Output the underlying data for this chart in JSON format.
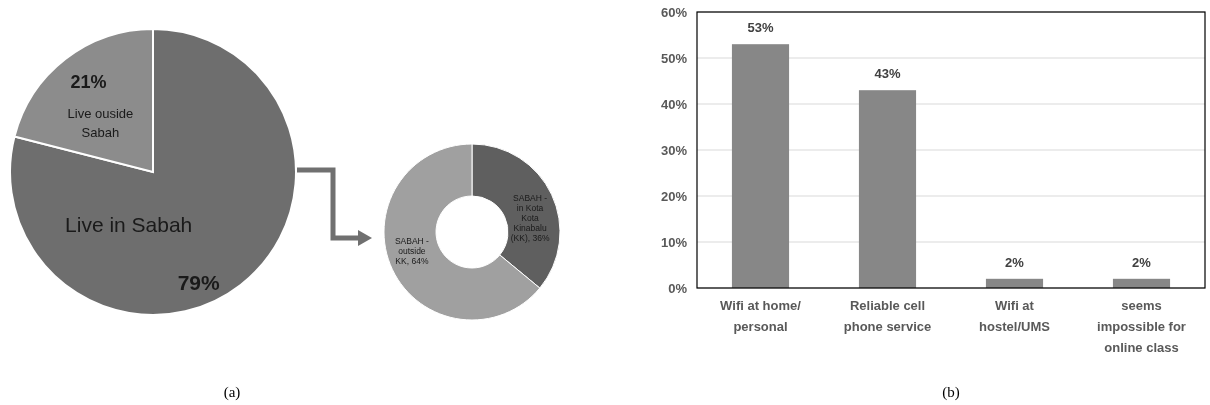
{
  "chart_data": [
    {
      "type": "pie",
      "categories": [
        "Live in Sabah",
        "Live ouside Sabah"
      ],
      "values": [
        79,
        21
      ],
      "colors": [
        "#6e6e6e",
        "#8c8c8c"
      ],
      "value_labels": [
        "79%",
        "21%"
      ],
      "annotations": [
        "(a)"
      ]
    },
    {
      "type": "donut",
      "categories": [
        "SABAH - in Kota Kota Kinabalu (KK)",
        "SABAH - outside KK"
      ],
      "values": [
        36,
        64
      ],
      "colors": [
        "#5f5f5f",
        "#a0a0a0"
      ],
      "value_labels": [
        "36%",
        "64%"
      ]
    },
    {
      "type": "bar",
      "categories": [
        "Wifi at home/ personal",
        "Reliable cell phone service",
        "Wifi at hostel/UMS",
        "seems impossible for online class"
      ],
      "values": [
        53,
        43,
        2,
        2
      ],
      "color": "#878787",
      "value_labels": [
        "53%",
        "43%",
        "2%",
        "2%"
      ],
      "ylim": [
        0,
        60
      ],
      "yticks": [
        {
          "value": 0,
          "label": "0%"
        },
        {
          "value": 10,
          "label": "10%"
        },
        {
          "value": 20,
          "label": "20%"
        },
        {
          "value": 30,
          "label": "30%"
        },
        {
          "value": 40,
          "label": "40%"
        },
        {
          "value": 50,
          "label": "50%"
        },
        {
          "value": 60,
          "label": "60%"
        }
      ],
      "grid": "y",
      "annotations": [
        "(b)"
      ]
    }
  ]
}
